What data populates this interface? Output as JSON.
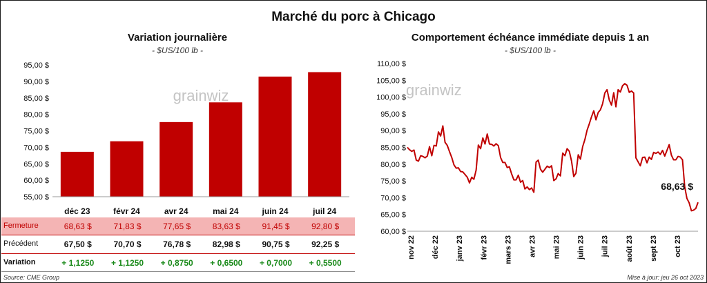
{
  "title": "Marché du porc à Chicago",
  "colors": {
    "bar": "#c00000",
    "line": "#c00000",
    "green": "#1a8a1a",
    "highlight": "#f4b4b4"
  },
  "left": {
    "title": "Variation  journalière",
    "subtitle": "- $US/100 lb -",
    "watermark": "grainwiz",
    "chart_data": {
      "type": "bar",
      "categories": [
        "déc 23",
        "févr 24",
        "avr 24",
        "mai 24",
        "juin 24",
        "juil 24"
      ],
      "values": [
        68.63,
        71.83,
        77.65,
        83.63,
        91.45,
        92.8
      ],
      "ylim": [
        55,
        95
      ],
      "yticks": [
        55,
        60,
        65,
        70,
        75,
        80,
        85,
        90,
        95
      ],
      "ytick_labels": [
        "55,00 $",
        "60,00 $",
        "65,00 $",
        "70,00 $",
        "75,00 $",
        "80,00 $",
        "85,00 $",
        "90,00 $",
        "95,00 $"
      ],
      "xlabel": "",
      "ylabel": "",
      "grid": false
    },
    "table": {
      "rows": [
        {
          "label": "Fermeture",
          "cells": [
            "68,63  $",
            "71,83  $",
            "77,65  $",
            "83,63  $",
            "91,45  $",
            "92,80  $"
          ]
        },
        {
          "label": "Précédent",
          "cells": [
            "67,50  $",
            "70,70  $",
            "76,78  $",
            "82,98  $",
            "90,75  $",
            "92,25  $"
          ]
        },
        {
          "label": "Variation",
          "cells": [
            "+ 1,1250",
            "+ 1,1250",
            "+ 0,8750",
            "+ 0,6500",
            "+ 0,7000",
            "+ 0,5500"
          ]
        }
      ]
    }
  },
  "right": {
    "title": "Comportement  échéance immédiate depuis 1 an",
    "subtitle": "- $US/100 lb -",
    "watermark": "grainwiz",
    "last_value_label": "68,63 $",
    "chart_data": {
      "type": "line",
      "x_labels": [
        "nov 22",
        "déc 22",
        "janv 23",
        "févr 23",
        "mars 23",
        "avr 23",
        "mai 23",
        "juin 23",
        "juil 23",
        "août 23",
        "sept 23",
        "oct 23"
      ],
      "ylim": [
        60,
        110
      ],
      "yticks": [
        60,
        65,
        70,
        75,
        80,
        85,
        90,
        95,
        100,
        105,
        110
      ],
      "ytick_labels": [
        "60,00 $",
        "65,00 $",
        "70,00 $",
        "75,00 $",
        "80,00 $",
        "85,00 $",
        "90,00 $",
        "95,00 $",
        "100,00 $",
        "105,00 $",
        "110,00 $"
      ],
      "series": [
        {
          "values": [
            85.0,
            84.3,
            83.8,
            84.2,
            81.2,
            80.9,
            82.5,
            82.3,
            81.9,
            82.4,
            85.2,
            82.5,
            85.6,
            85.4,
            89.6,
            88.4,
            91.4,
            86.5,
            85.6,
            83.7,
            82.0,
            79.8,
            78.8,
            78.9,
            77.8,
            77.7,
            76.9,
            76.1,
            74.4,
            76.1,
            75.5,
            78.2,
            85.7,
            84.6,
            87.8,
            86.0,
            89.0,
            86.0,
            85.9,
            85.4,
            86.1,
            85.5,
            82.0,
            80.5,
            80.5,
            79.0,
            79.2,
            77.1,
            75.3,
            75.3,
            76.7,
            74.6,
            75.1,
            72.6,
            73.2,
            72.4,
            72.9,
            71.6,
            80.6,
            81.2,
            78.5,
            77.6,
            78.5,
            79.4,
            79.0,
            79.5,
            75.1,
            75.6,
            77.2,
            76.5,
            83.3,
            82.5,
            84.6,
            83.8,
            80.9,
            76.3,
            77.3,
            82.8,
            81.5,
            85.2,
            87.3,
            90.1,
            92.0,
            94.1,
            95.9,
            93.2,
            95.4,
            96.2,
            98.0,
            101.2,
            102.2,
            99.1,
            97.6,
            101.3,
            97.1,
            102.2,
            101.5,
            103.4,
            104.0,
            103.5,
            101.4,
            101.8,
            101.2,
            81.9,
            80.7,
            79.5,
            82.0,
            82.1,
            80.4,
            82.1,
            81.4,
            83.5,
            83.2,
            83.6,
            82.9,
            84.1,
            82.4,
            84.1,
            85.8,
            82.7,
            81.3,
            81.3,
            82.3,
            82.1,
            81.3,
            73.3,
            69.8,
            68.5,
            66.1,
            66.3,
            66.8,
            68.63
          ]
        }
      ],
      "xlabel": "",
      "ylabel": "",
      "grid": false
    }
  },
  "footer": {
    "source": "Source: CME Group",
    "updated": "Mise à jour: jeu 26 oct 2023"
  }
}
